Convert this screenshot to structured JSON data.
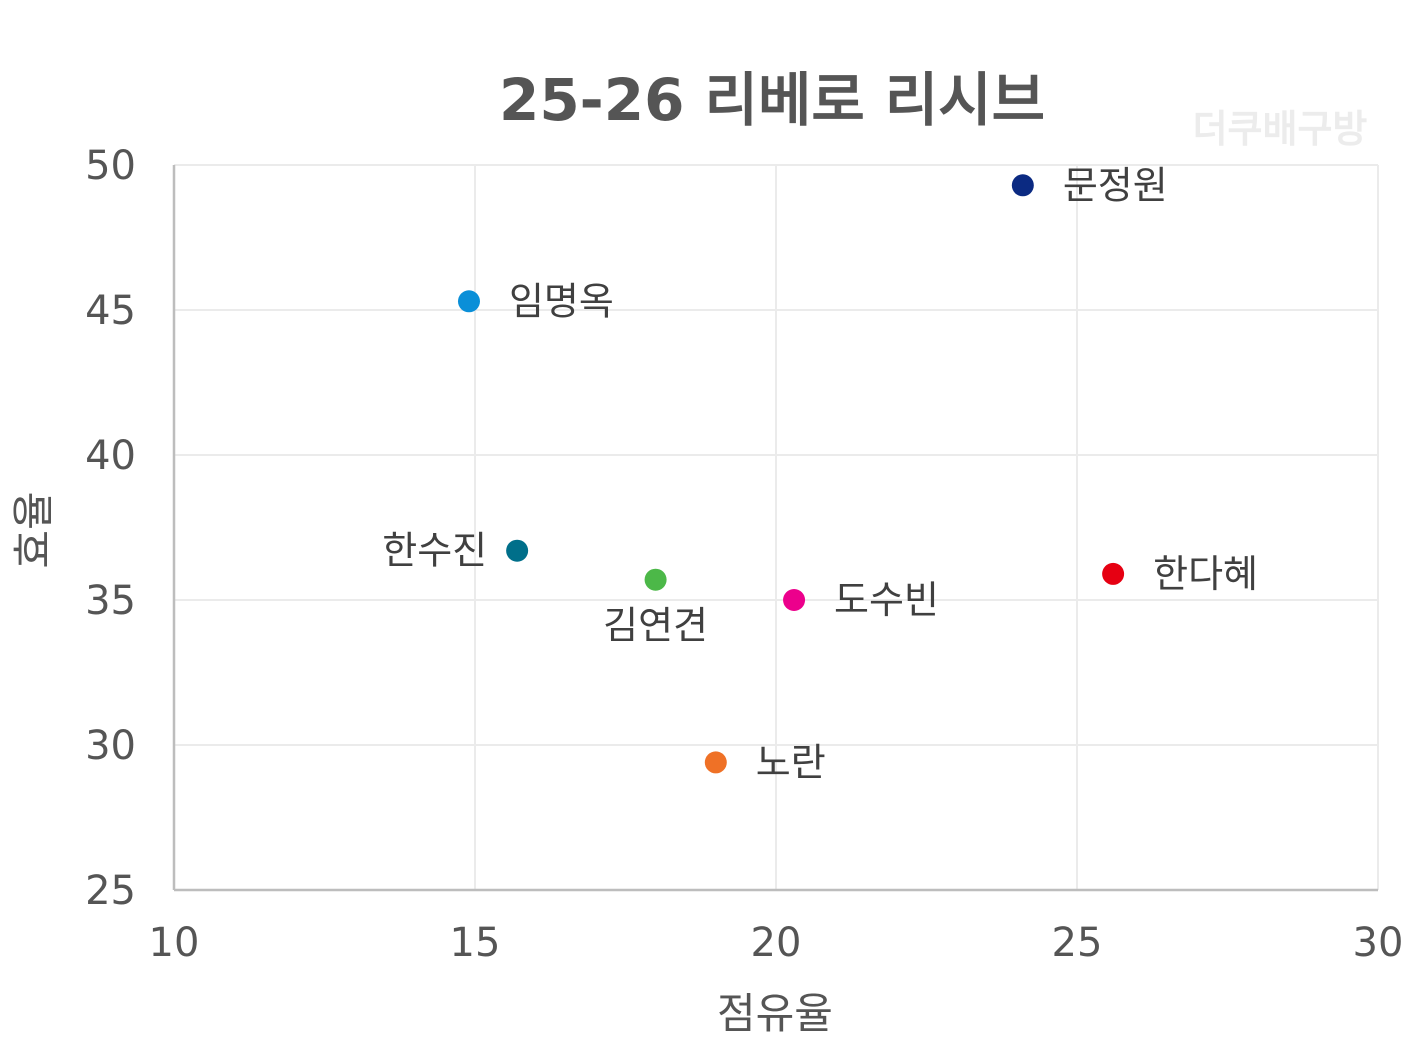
{
  "chart_data": {
    "type": "scatter",
    "title": "25-26 리베로 리시브",
    "watermark": "더쿠배구방",
    "xlabel": "점유율",
    "ylabel": "효율",
    "xlim": [
      10,
      30
    ],
    "ylim": [
      25,
      50
    ],
    "xticks": [
      10,
      15,
      20,
      25,
      30
    ],
    "yticks": [
      25,
      30,
      35,
      40,
      45,
      50
    ],
    "grid": true,
    "points": [
      {
        "label": "문정원",
        "x": 24.1,
        "y": 49.3,
        "color": "#0b2a82",
        "label_side": "right"
      },
      {
        "label": "임명옥",
        "x": 14.9,
        "y": 45.3,
        "color": "#0a8fd8",
        "label_side": "right"
      },
      {
        "label": "한수진",
        "x": 15.7,
        "y": 36.7,
        "color": "#006f8a",
        "label_side": "left"
      },
      {
        "label": "김연견",
        "x": 18.0,
        "y": 35.7,
        "color": "#4cb848",
        "label_side": "below"
      },
      {
        "label": "도수빈",
        "x": 20.3,
        "y": 35.0,
        "color": "#ec008c",
        "label_side": "right"
      },
      {
        "label": "한다혜",
        "x": 25.6,
        "y": 35.9,
        "color": "#e60012",
        "label_side": "right"
      },
      {
        "label": "노란",
        "x": 19.0,
        "y": 29.4,
        "color": "#ef7126",
        "label_side": "right"
      }
    ]
  }
}
